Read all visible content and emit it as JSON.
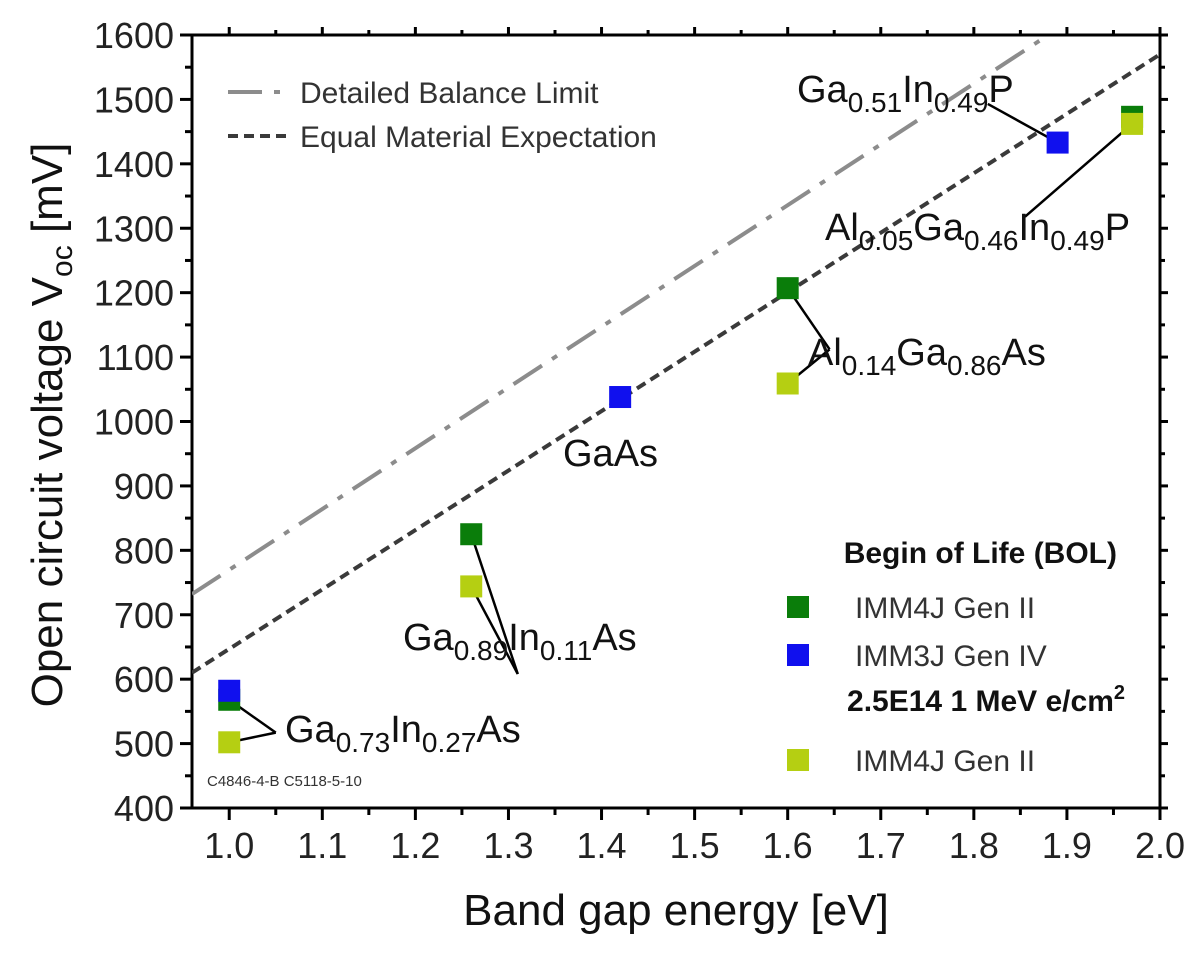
{
  "chart_data": {
    "type": "scatter",
    "xlabel": "Band gap energy [eV]",
    "ylabel_main": "Open circuit voltage V",
    "ylabel_sub": "oc",
    "ylabel_unit": " [mV]",
    "xlim": [
      0.96,
      2.0
    ],
    "ylim": [
      400,
      1600
    ],
    "xticks": [
      1.0,
      1.1,
      1.2,
      1.3,
      1.4,
      1.5,
      1.6,
      1.7,
      1.8,
      1.9,
      2.0
    ],
    "xtick_labels": [
      "1.0",
      "1.1",
      "1.2",
      "1.3",
      "1.4",
      "1.5",
      "1.6",
      "1.7",
      "1.8",
      "1.9",
      "2.0"
    ],
    "yticks": [
      400,
      500,
      600,
      700,
      800,
      900,
      1000,
      1100,
      1200,
      1300,
      1400,
      1500,
      1600
    ],
    "ytick_labels": [
      "400",
      "500",
      "600",
      "700",
      "800",
      "900",
      "1000",
      "1100",
      "1200",
      "1300",
      "1400",
      "1500",
      "1600"
    ],
    "lines": [
      {
        "name": "Detailed Balance Limit",
        "style": "dash-dot",
        "color": "#8c8c8c",
        "points": [
          [
            0.96,
            732
          ],
          [
            1.88,
            1600
          ]
        ]
      },
      {
        "name": "Equal Material Expectation",
        "style": "dotted",
        "color": "#3a3a3a",
        "points": [
          [
            0.96,
            610
          ],
          [
            2.0,
            1570
          ]
        ]
      }
    ],
    "series": [
      {
        "name": "IMM4J Gen II",
        "group": "Begin of Life (BOL)",
        "color": "#0a7d0a",
        "points": [
          [
            1.0,
            568
          ],
          [
            1.26,
            825
          ],
          [
            1.6,
            1207
          ],
          [
            1.97,
            1473
          ]
        ]
      },
      {
        "name": "IMM3J Gen IV",
        "group": "Begin of Life (BOL)",
        "color": "#1010ee",
        "points": [
          [
            1.0,
            582
          ],
          [
            1.42,
            1038
          ],
          [
            1.89,
            1433
          ]
        ]
      },
      {
        "name": "IMM4J Gen II",
        "group": "2.5E14 1 MeV e/cm2",
        "color": "#b5cf12",
        "points": [
          [
            1.0,
            502
          ],
          [
            1.26,
            744
          ],
          [
            1.6,
            1059
          ],
          [
            1.97,
            1462
          ]
        ]
      }
    ],
    "legend": {
      "position": "bottom-right",
      "line_entries": [
        "Detailed Balance Limit",
        "Equal Material Expectation"
      ],
      "group1_title": "Begin of Life (BOL)",
      "group1_items": [
        "IMM4J Gen II",
        "IMM3J Gen IV"
      ],
      "group2_title_main": "2.5E14 1 MeV e/cm",
      "group2_title_sup": "2",
      "group2_items": [
        "IMM4J Gen II"
      ]
    },
    "annotations": [
      {
        "id": "gainp",
        "parts": [
          [
            "Ga",
            false
          ],
          [
            "0.51",
            true
          ],
          [
            "In",
            false
          ],
          [
            "0.49",
            true
          ],
          [
            "P",
            false
          ]
        ]
      },
      {
        "id": "algainp",
        "parts": [
          [
            "Al",
            false
          ],
          [
            "0.05",
            true
          ],
          [
            "Ga",
            false
          ],
          [
            "0.46",
            true
          ],
          [
            "In",
            false
          ],
          [
            "0.49",
            true
          ],
          [
            "P",
            false
          ]
        ]
      },
      {
        "id": "algaas",
        "parts": [
          [
            "Al",
            false
          ],
          [
            "0.14",
            true
          ],
          [
            "Ga",
            false
          ],
          [
            "0.86",
            true
          ],
          [
            "As",
            false
          ]
        ]
      },
      {
        "id": "gaas",
        "parts": [
          [
            "GaAs",
            false
          ]
        ]
      },
      {
        "id": "ga89",
        "parts": [
          [
            "Ga",
            false
          ],
          [
            "0.89",
            true
          ],
          [
            "In",
            false
          ],
          [
            "0.11",
            true
          ],
          [
            "As",
            false
          ]
        ]
      },
      {
        "id": "ga73",
        "parts": [
          [
            "Ga",
            false
          ],
          [
            "0.73",
            true
          ],
          [
            "In",
            false
          ],
          [
            "0.27",
            true
          ],
          [
            "As",
            false
          ]
        ]
      }
    ],
    "note": "C4846-4-B C5118-5-10"
  }
}
